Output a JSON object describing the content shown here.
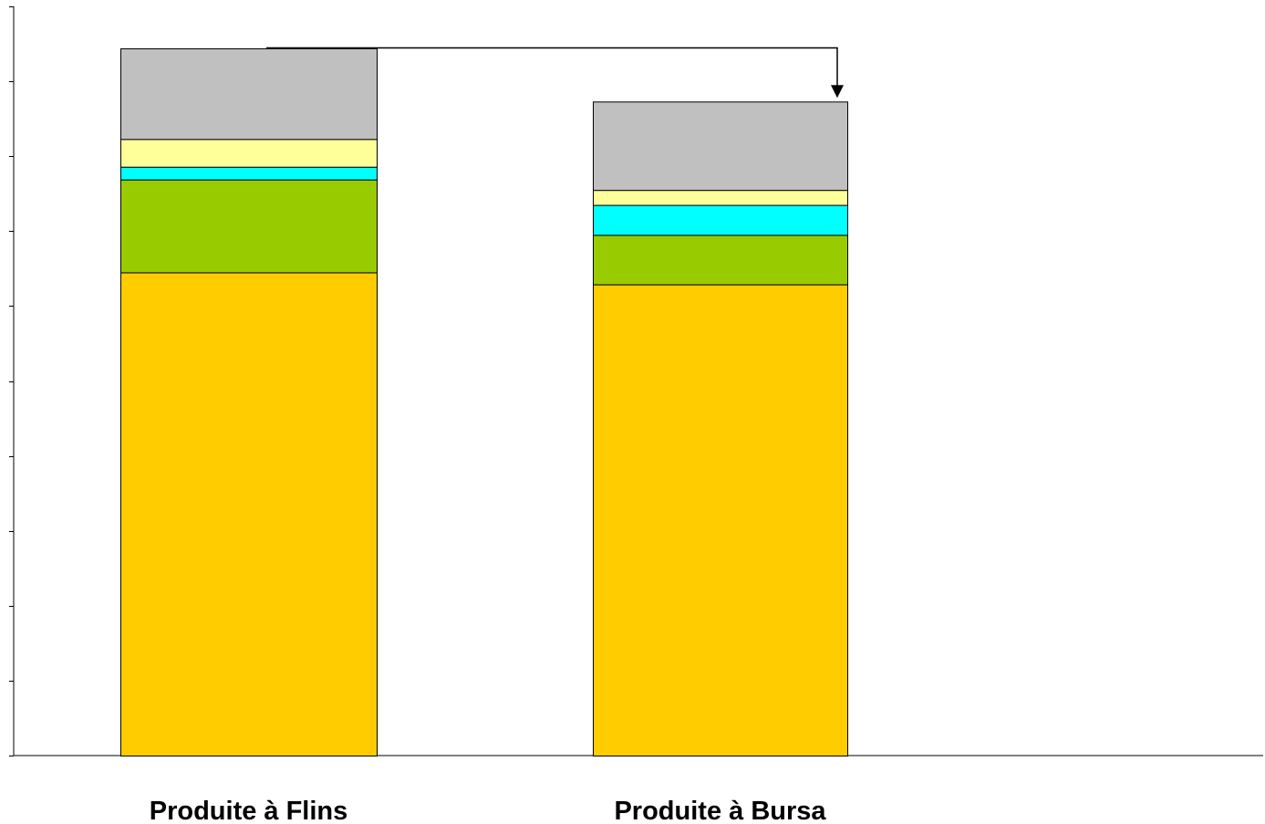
{
  "chart_data": {
    "type": "bar",
    "stacked": true,
    "title": "",
    "categories": [
      "Produite à Flins",
      "Produite à Bursa"
    ],
    "series": [
      {
        "color": "#FFCC00",
        "values": [
          6.45,
          6.29
        ]
      },
      {
        "color": "#99CC00",
        "values": [
          1.24,
          0.66
        ]
      },
      {
        "color": "#00FFFF",
        "values": [
          0.17,
          0.4
        ]
      },
      {
        "color": "#FFFF99",
        "values": [
          0.37,
          0.2
        ]
      },
      {
        "color": "#C0C0C0",
        "values": [
          1.21,
          1.18
        ]
      }
    ],
    "ylim": [
      0,
      10
    ],
    "yticks": [
      0,
      1,
      2,
      3,
      4,
      5,
      6,
      7,
      8,
      9,
      10
    ],
    "grid": false,
    "annotation": {
      "type": "arrow",
      "from": "Produite à Flins",
      "to": "Produite à Bursa"
    }
  }
}
